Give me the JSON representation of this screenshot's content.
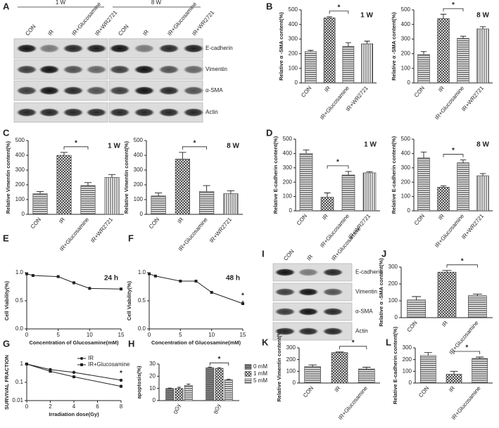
{
  "panel_letters": [
    "A",
    "B",
    "C",
    "D",
    "E",
    "F",
    "G",
    "H",
    "I",
    "J",
    "K",
    "L"
  ],
  "blots": [
    {
      "headers": [
        "1 W",
        "8 W"
      ],
      "lanes": [
        "CON",
        "IR",
        "IR+Glucosamine",
        "IR+WR2721",
        "CON",
        "IR",
        "IR+Glucosamine",
        "IR+WR2721"
      ],
      "proteins": [
        "E-cadherin",
        "Vimentin",
        "α-SMA",
        "Actin"
      ]
    },
    {
      "lanes": [
        "CON",
        "IR",
        "IR+Glucosamine"
      ],
      "proteins": [
        "E-cadherin",
        "Vimentin",
        "α-SMA",
        "Actin"
      ]
    }
  ],
  "chart_data": [
    {
      "type": "bar",
      "title": "1 W",
      "ylabel": "Relative α -SMA content(%)",
      "categories": [
        "CON",
        "IR",
        "IR+Glucosamine",
        "IR+WR2721"
      ],
      "values": [
        215,
        445,
        250,
        268
      ],
      "errors": [
        8,
        8,
        25,
        18
      ],
      "patterns": [
        "hstripe",
        "cross",
        "hstripe",
        "vstripe"
      ],
      "ylim": [
        0,
        500
      ],
      "yticks": [
        0,
        100,
        200,
        300,
        400,
        500
      ],
      "annotations": [
        {
          "text": "*",
          "from": "IR",
          "to": "IR+Glucosamine"
        }
      ]
    },
    {
      "type": "bar",
      "title": "8 W",
      "ylabel": "Relative α -SMA content(%)",
      "categories": [
        "CON",
        "IR",
        "IR+Glucosamine",
        "IR+WR2721"
      ],
      "values": [
        195,
        440,
        305,
        370
      ],
      "errors": [
        20,
        30,
        15,
        15
      ],
      "patterns": [
        "hstripe",
        "cross",
        "hstripe",
        "vstripe"
      ],
      "ylim": [
        0,
        500
      ],
      "yticks": [
        0,
        100,
        200,
        300,
        400,
        500
      ],
      "annotations": [
        {
          "text": "*",
          "from": "IR",
          "to": "IR+Glucosamine"
        }
      ]
    },
    {
      "type": "bar",
      "title": "1 W",
      "ylabel": "Relative Vimentin content(%)",
      "categories": [
        "CON",
        "IR",
        "IR+Glucosamine",
        "IR+WR2721"
      ],
      "values": [
        140,
        400,
        195,
        250
      ],
      "errors": [
        15,
        20,
        20,
        20
      ],
      "patterns": [
        "hstripe",
        "cross",
        "hstripe",
        "vstripe"
      ],
      "ylim": [
        0,
        500
      ],
      "yticks": [
        0,
        100,
        200,
        300,
        400,
        500
      ],
      "annotations": [
        {
          "text": "*",
          "from": "IR",
          "to": "IR+Glucosamine"
        }
      ]
    },
    {
      "type": "bar",
      "title": "8 W",
      "ylabel": "Relative Vimentin content(%)",
      "categories": [
        "CON",
        "IR",
        "IR+Glucosamine",
        "IR+WR2721"
      ],
      "values": [
        125,
        375,
        155,
        140
      ],
      "errors": [
        20,
        45,
        40,
        20
      ],
      "patterns": [
        "hstripe",
        "cross",
        "hstripe",
        "vstripe"
      ],
      "ylim": [
        0,
        500
      ],
      "yticks": [
        0,
        100,
        200,
        300,
        400,
        500
      ],
      "annotations": [
        {
          "text": "*",
          "from": "IR",
          "to": "IR+Glucosamine"
        }
      ]
    },
    {
      "type": "bar",
      "title": "1 W",
      "ylabel": "Relative E-cadherin content(%)",
      "categories": [
        "CON",
        "IR",
        "IR+Glucosamine",
        "IR+WR2721"
      ],
      "values": [
        400,
        95,
        250,
        265
      ],
      "errors": [
        25,
        30,
        25,
        8
      ],
      "patterns": [
        "hstripe",
        "cross",
        "hstripe",
        "vstripe"
      ],
      "ylim": [
        0,
        500
      ],
      "yticks": [
        0,
        100,
        200,
        300,
        400,
        500
      ],
      "annotations": [
        {
          "text": "*",
          "from": "IR",
          "to": "IR+Glucosamine"
        }
      ]
    },
    {
      "type": "bar",
      "title": "8 W",
      "ylabel": "Relative E-cadherin content(%)",
      "categories": [
        "CON",
        "IR",
        "IR+Glucosamine",
        "IR+WR2721"
      ],
      "values": [
        370,
        165,
        335,
        245
      ],
      "errors": [
        40,
        10,
        20,
        15
      ],
      "patterns": [
        "hstripe",
        "cross",
        "hstripe",
        "vstripe"
      ],
      "ylim": [
        0,
        500
      ],
      "yticks": [
        0,
        100,
        200,
        300,
        400,
        500
      ],
      "annotations": [
        {
          "text": "*",
          "from": "IR",
          "to": "IR+Glucosamine"
        }
      ]
    },
    {
      "type": "line",
      "title": "24 h",
      "xlabel": "Concentration of  Glucosamine(mM)",
      "ylabel": "Cell Viability(%)",
      "x": [
        0,
        1,
        5,
        7.5,
        10,
        15
      ],
      "series": [
        {
          "values": [
            0.98,
            0.95,
            0.93,
            0.82,
            0.72,
            0.71
          ],
          "errors": [
            0.01,
            0.02,
            0.02,
            0.02,
            0.02,
            0.01
          ],
          "marker": "square",
          "color": "#222"
        }
      ],
      "xlim": [
        0,
        15
      ],
      "xticks": [
        0,
        5,
        10,
        15
      ],
      "ylim": [
        0,
        1
      ],
      "yticks": [
        {
          "value": 0,
          "label": "0.0"
        },
        {
          "value": 0.5,
          "label": "0.5"
        },
        {
          "value": 1,
          "label": "1.0"
        }
      ]
    },
    {
      "type": "line",
      "title": "48 h",
      "xlabel": "Concentration of  Glucosamine(mM)",
      "ylabel": "Cell Viability(%)",
      "x": [
        0,
        1,
        5,
        7.5,
        10,
        15
      ],
      "series": [
        {
          "values": [
            0.98,
            0.94,
            0.85,
            0.85,
            0.65,
            0.45
          ],
          "errors": [
            0.01,
            0.01,
            0.02,
            0.02,
            0.02,
            0.04
          ],
          "marker": "square",
          "color": "#222"
        }
      ],
      "xlim": [
        0,
        15
      ],
      "xticks": [
        0,
        5,
        10,
        15
      ],
      "ylim": [
        0,
        1
      ],
      "yticks": [
        {
          "value": 0,
          "label": "0.0"
        },
        {
          "value": 0.5,
          "label": "0.5"
        },
        {
          "value": 1,
          "label": "1.0"
        }
      ],
      "annotations": [
        {
          "text": "*",
          "x": 15
        }
      ]
    },
    {
      "type": "line",
      "xlabel": "Irradiation dose(Gy)",
      "ylabel": "SURVIVAL FRACTION",
      "log_y": true,
      "x": [
        0,
        2,
        4,
        8
      ],
      "series": [
        {
          "name": "IR",
          "values": [
            1,
            0.5,
            0.35,
            0.13
          ],
          "errors": [
            0,
            0.03,
            0.02,
            0.02
          ],
          "marker": "circle",
          "color": "#222"
        },
        {
          "name": "IR+Glucosamine",
          "values": [
            1,
            0.4,
            0.2,
            0.06
          ],
          "errors": [
            0,
            0.03,
            0.02,
            0.01
          ],
          "marker": "square",
          "color": "#222"
        }
      ],
      "xlim": [
        0,
        8
      ],
      "xticks": [
        0,
        2,
        4,
        6,
        8
      ],
      "ylim": [
        0.01,
        1
      ],
      "yticks": [
        0.01,
        0.1,
        1
      ],
      "legend": "top-right",
      "annotations": [
        {
          "text": "*",
          "x": 8
        }
      ]
    },
    {
      "type": "grouped_bar",
      "ylabel": "apoptosis(%)",
      "categories": [
        "0Gy",
        "8Gy"
      ],
      "series": [
        {
          "name": "0 mM",
          "values": [
            10,
            27
          ],
          "errors": [
            0.3,
            0.5
          ],
          "pattern": "dark"
        },
        {
          "name": "1 mM",
          "values": [
            10,
            26.5
          ],
          "errors": [
            1,
            0.5
          ],
          "pattern": "cross"
        },
        {
          "name": "5 mM",
          "values": [
            12.5,
            17
          ],
          "errors": [
            1,
            0.5
          ],
          "pattern": "hstripe"
        }
      ],
      "ylim": [
        0,
        30
      ],
      "yticks": [
        0,
        10,
        20,
        30
      ],
      "legend": "right",
      "annotations": [
        {
          "text": "*",
          "category": "8Gy",
          "from": "0 mM",
          "to": "5 mM"
        }
      ]
    },
    {
      "type": "bar",
      "ylabel": "Relative α -SMA content(%)",
      "categories": [
        "CON",
        "IR",
        "IR+Glucosamine"
      ],
      "values": [
        105,
        270,
        130
      ],
      "errors": [
        20,
        10,
        10
      ],
      "patterns": [
        "hstripe",
        "cross",
        "hstripe"
      ],
      "ylim": [
        0,
        300
      ],
      "yticks": [
        0,
        100,
        200,
        300
      ],
      "annotations": [
        {
          "text": "*",
          "from": "IR",
          "to": "IR+Glucosamine"
        }
      ]
    },
    {
      "type": "bar",
      "ylabel": "Relative Vimentin content(%)",
      "categories": [
        "CON",
        "IR",
        "IR+Glucosamine"
      ],
      "values": [
        140,
        260,
        120
      ],
      "errors": [
        15,
        5,
        15
      ],
      "patterns": [
        "hstripe",
        "cross",
        "hstripe"
      ],
      "ylim": [
        0,
        300
      ],
      "yticks": [
        0,
        100,
        200,
        300
      ],
      "annotations": [
        {
          "text": "*",
          "from": "IR",
          "to": "IR+Glucosamine"
        }
      ]
    },
    {
      "type": "bar",
      "ylabel": "Relative E-cadherin content(%)",
      "categories": [
        "CON",
        "IR",
        "IR+Glucosamine"
      ],
      "values": [
        235,
        75,
        210
      ],
      "errors": [
        25,
        25,
        12
      ],
      "patterns": [
        "hstripe",
        "cross",
        "hstripe"
      ],
      "ylim": [
        0,
        300
      ],
      "yticks": [
        0,
        100,
        200,
        300
      ],
      "annotations": [
        {
          "text": "*",
          "from": "IR",
          "to": "IR+Glucosamine"
        }
      ]
    }
  ]
}
